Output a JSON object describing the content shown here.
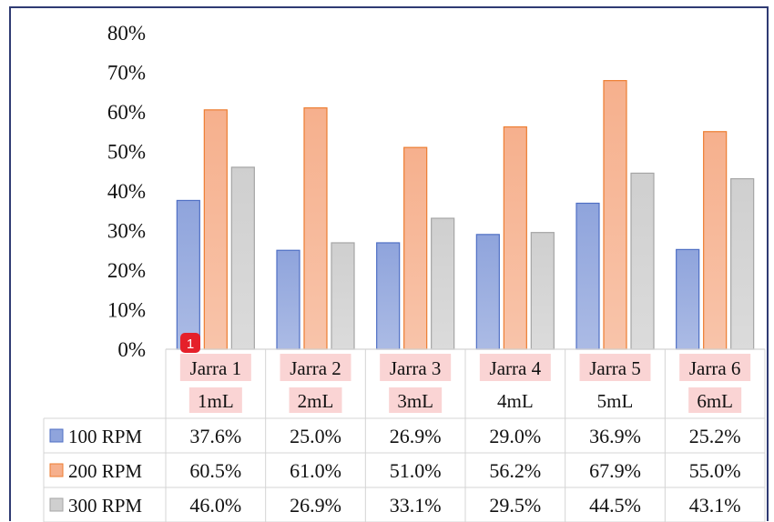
{
  "chart_data": {
    "type": "bar",
    "title": "",
    "xlabel": "",
    "ylabel": "",
    "ylim": [
      0,
      0.8
    ],
    "yticks": [
      "0%",
      "10%",
      "20%",
      "30%",
      "40%",
      "50%",
      "60%",
      "70%",
      "80%"
    ],
    "grid": false,
    "legend": "data-table",
    "categories": [
      {
        "line1": "Jarra 1",
        "line2": "1mL"
      },
      {
        "line1": "Jarra 2",
        "line2": "2mL"
      },
      {
        "line1": "Jarra 3",
        "line2": "3mL"
      },
      {
        "line1": "Jarra 4",
        "line2": "4mL"
      },
      {
        "line1": "Jarra 5",
        "line2": "5mL"
      },
      {
        "line1": "Jarra 6",
        "line2": "6mL"
      }
    ],
    "series": [
      {
        "name": "100 RPM",
        "color": "#8fa4dc",
        "edge": "#4f6fc4",
        "values": [
          0.376,
          0.25,
          0.269,
          0.29,
          0.369,
          0.252
        ],
        "labels": [
          "37.6%",
          "25.0%",
          "26.9%",
          "29.0%",
          "36.9%",
          "25.2%"
        ]
      },
      {
        "name": "200 RPM",
        "color": "#f6b08d",
        "edge": "#ed7d31",
        "values": [
          0.605,
          0.61,
          0.51,
          0.562,
          0.679,
          0.55
        ],
        "labels": [
          "60.5%",
          "61.0%",
          "51.0%",
          "56.2%",
          "67.9%",
          "55.0%"
        ]
      },
      {
        "name": "300 RPM",
        "color": "#cfcfcf",
        "edge": "#a5a5a5",
        "values": [
          0.46,
          0.269,
          0.331,
          0.295,
          0.445,
          0.431
        ],
        "labels": [
          "46.0%",
          "26.9%",
          "33.1%",
          "29.5%",
          "44.5%",
          "43.1%"
        ]
      }
    ]
  },
  "annotations": {
    "highlight_color": "#fad4d4",
    "badge_color": "#e5202a",
    "badge_text": "1",
    "highlighted_line1": [
      0,
      1,
      2,
      3,
      4,
      5
    ],
    "highlighted_line2": [
      0,
      1,
      2,
      5
    ]
  }
}
